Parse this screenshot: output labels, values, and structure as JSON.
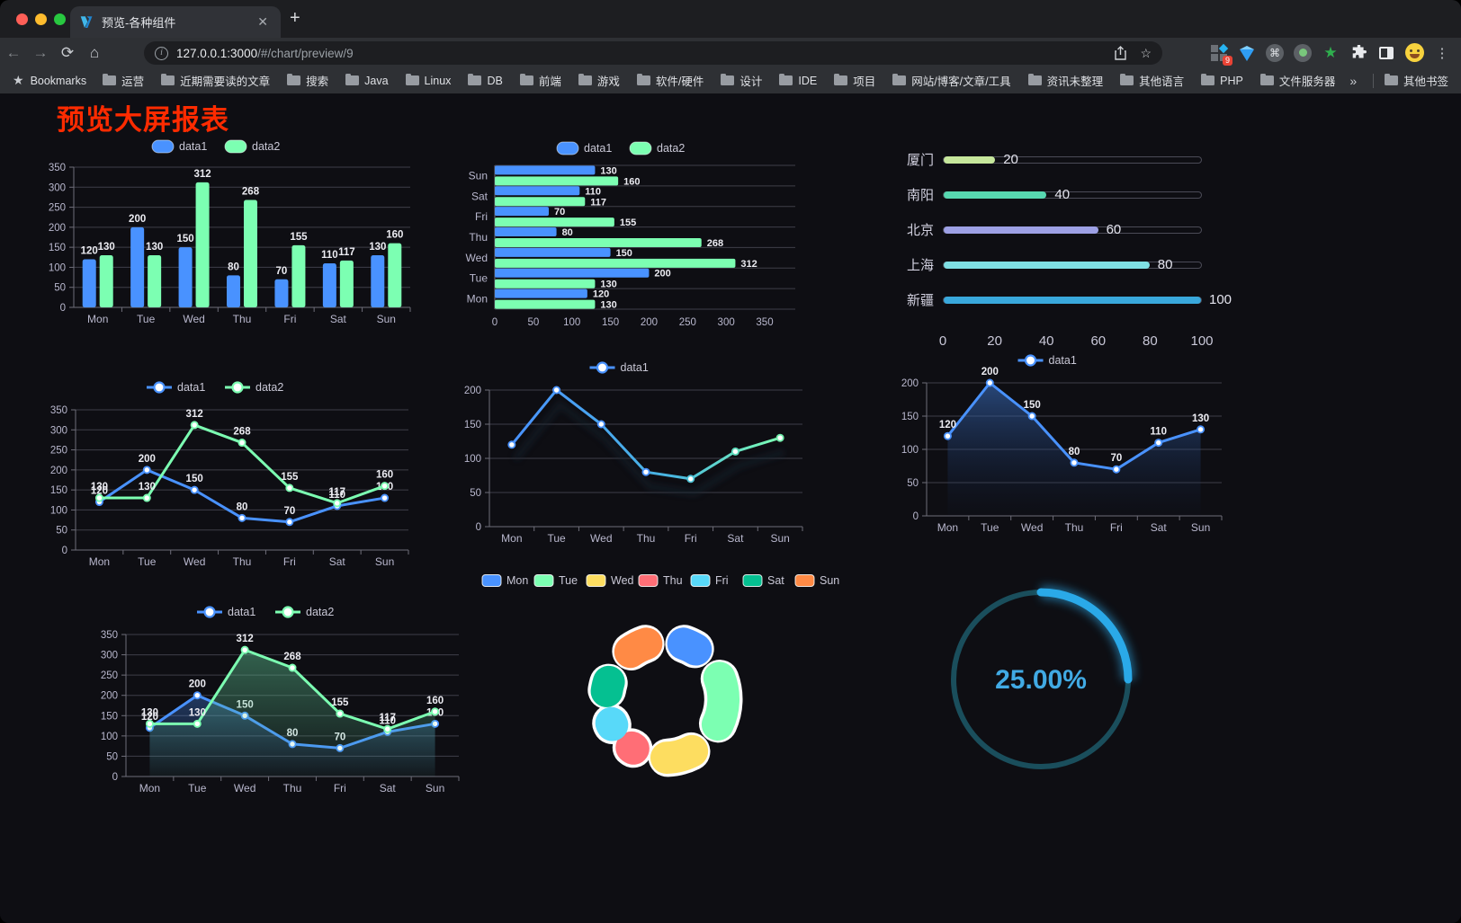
{
  "browser": {
    "tab": {
      "title": "预览-各种组件",
      "close_icon": "✕",
      "new_tab_icon": "+"
    },
    "toolbar": {
      "back_icon": "←",
      "forward_icon": "→",
      "reload_icon": "⟳",
      "home_icon": "⌂",
      "omnibox": {
        "info_icon": "i",
        "url_host": "127.0.0.1:3000",
        "url_path": "/#/chart/preview/9",
        "share_icon": "share-icon",
        "star_icon": "☆"
      },
      "extension_badge": "9",
      "command_icon": "⌘",
      "green_star_icon": "★",
      "menu_icon": "⋮"
    },
    "bookmarks_bar": {
      "star_icon": "★",
      "label": "Bookmarks",
      "folders": [
        "运营",
        "近期需要读的文章",
        "搜索",
        "Java",
        "Linux",
        "DB",
        "前端",
        "游戏",
        "软件/硬件",
        "设计",
        "IDE",
        "项目",
        "网站/博客/文章/工具",
        "资讯未整理",
        "其他语言",
        "PHP",
        "文件服务器"
      ],
      "overflow_icon": "»",
      "other_bookmarks": "其他书签"
    }
  },
  "page": {
    "title": "预览大屏报表",
    "title_color": "#fe2b00",
    "background": "#0e0e13"
  },
  "chart_data": [
    {
      "id": "c1",
      "type": "bar",
      "legend_position": "top",
      "categories": [
        "Mon",
        "Tue",
        "Wed",
        "Thu",
        "Fri",
        "Sat",
        "Sun"
      ],
      "series": [
        {
          "name": "data1",
          "color": "#4992ff",
          "values": [
            120,
            200,
            150,
            80,
            70,
            110,
            130
          ]
        },
        {
          "name": "data2",
          "color": "#7cffb2",
          "values": [
            130,
            130,
            312,
            268,
            155,
            117,
            160
          ]
        }
      ],
      "ylim": [
        0,
        350
      ],
      "ystep": 50,
      "grid": true
    },
    {
      "id": "c2",
      "type": "hbar",
      "legend_position": "top",
      "categories": [
        "Mon",
        "Tue",
        "Wed",
        "Thu",
        "Fri",
        "Sat",
        "Sun"
      ],
      "series": [
        {
          "name": "data1",
          "color": "#4992ff",
          "values": [
            120,
            200,
            150,
            80,
            70,
            110,
            130
          ]
        },
        {
          "name": "data2",
          "color": "#7cffb2",
          "values": [
            130,
            130,
            312,
            268,
            155,
            117,
            160
          ]
        }
      ],
      "xlim": [
        0,
        350
      ],
      "xstep": 50,
      "grid": true
    },
    {
      "id": "c3",
      "type": "progress",
      "items": [
        {
          "label": "厦门",
          "value": 20,
          "color": "#c6e79c"
        },
        {
          "label": "南阳",
          "value": 40,
          "color": "#57d7b0"
        },
        {
          "label": "北京",
          "value": 60,
          "color": "#9da0e5"
        },
        {
          "label": "上海",
          "value": 80,
          "color": "#7fdfe3"
        },
        {
          "label": "新疆",
          "value": 100,
          "color": "#39a8dc"
        }
      ],
      "xlim": [
        0,
        100
      ],
      "xticks": [
        0,
        20,
        40,
        60,
        80,
        100
      ]
    },
    {
      "id": "c4",
      "type": "line",
      "legend_position": "top",
      "point_labels": true,
      "categories": [
        "Mon",
        "Tue",
        "Wed",
        "Thu",
        "Fri",
        "Sat",
        "Sun"
      ],
      "series": [
        {
          "name": "data1",
          "color": "#4992ff",
          "values": [
            120,
            200,
            150,
            80,
            70,
            110,
            130
          ]
        },
        {
          "name": "data2",
          "color": "#7cffb2",
          "values": [
            130,
            130,
            312,
            268,
            155,
            117,
            160
          ]
        }
      ],
      "ylim": [
        0,
        350
      ],
      "ystep": 50,
      "grid": true
    },
    {
      "id": "c5",
      "type": "line-gradient",
      "legend_position": "top",
      "point_labels": false,
      "categories": [
        "Mon",
        "Tue",
        "Wed",
        "Thu",
        "Fri",
        "Sat",
        "Sun"
      ],
      "series": [
        {
          "name": "data1",
          "color": "#4992ff",
          "gradient": [
            "#4992ff",
            "#49b7e0",
            "#7cffb2"
          ],
          "values": [
            120,
            200,
            150,
            80,
            70,
            110,
            130
          ]
        }
      ],
      "ylim": [
        0,
        200
      ],
      "ystep": 50,
      "grid": true
    },
    {
      "id": "c6",
      "type": "area",
      "legend_position": "top",
      "point_labels": true,
      "categories": [
        "Mon",
        "Tue",
        "Wed",
        "Thu",
        "Fri",
        "Sat",
        "Sun"
      ],
      "series": [
        {
          "name": "data1",
          "color": "#4992ff",
          "fill": [
            "rgba(58,110,190,0.60)",
            "rgba(20,40,80,0.03)"
          ],
          "values": [
            120,
            200,
            150,
            80,
            70,
            110,
            130
          ]
        }
      ],
      "ylim": [
        0,
        200
      ],
      "ystep": 50,
      "grid": true
    },
    {
      "id": "c7",
      "type": "area",
      "legend_position": "top",
      "point_labels": true,
      "categories": [
        "Mon",
        "Tue",
        "Wed",
        "Thu",
        "Fri",
        "Sat",
        "Sun"
      ],
      "series": [
        {
          "name": "data1",
          "color": "#4992ff",
          "fill": [
            "rgba(73,146,255,0.32)",
            "rgba(73,146,255,0.02)"
          ],
          "values": [
            120,
            200,
            150,
            80,
            70,
            110,
            130
          ]
        },
        {
          "name": "data2",
          "color": "#7cffb2",
          "fill": [
            "rgba(96,200,150,0.45)",
            "rgba(96,200,150,0.04)"
          ],
          "values": [
            130,
            130,
            312,
            268,
            155,
            117,
            160
          ]
        }
      ],
      "ylim": [
        0,
        350
      ],
      "ystep": 50,
      "grid": true
    },
    {
      "id": "c8",
      "type": "pie",
      "legend_position": "top",
      "inner_radius": 0.57,
      "labels": [
        "Mon",
        "Tue",
        "Wed",
        "Thu",
        "Fri",
        "Sat",
        "Sun"
      ],
      "values": [
        120,
        200,
        150,
        80,
        70,
        110,
        130
      ],
      "colors": [
        "#4992ff",
        "#7cffb2",
        "#fddd60",
        "#ff6e76",
        "#58d9f9",
        "#05c091",
        "#ff8a45"
      ]
    },
    {
      "id": "c9",
      "type": "gauge",
      "value": 25,
      "display": "25.00%",
      "color": "#2aa9e8",
      "track_color": "#1a4e5c",
      "text_color": "#41aae4"
    }
  ]
}
